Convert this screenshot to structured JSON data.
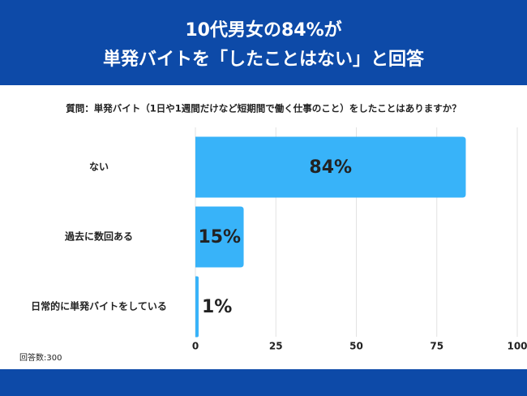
{
  "chart_data": {
    "type": "bar",
    "orientation": "horizontal",
    "title": [
      "10代男女の84%が",
      "単発バイトを「したことはない」と回答"
    ],
    "subtitle": "質問：単発バイト（1日や1週間だけなど短期間で働く仕事のこと）をしたことはありますか？",
    "categories": [
      "ない",
      "過去に数回ある",
      "日常的に単発バイトをしている"
    ],
    "values": [
      84,
      15,
      1
    ],
    "value_labels": [
      "84%",
      "15%",
      "1%"
    ],
    "color": "#38b3f9",
    "xlim": [
      0,
      100
    ],
    "xticks": [
      0,
      25,
      50,
      75,
      100
    ],
    "grid": true,
    "note": "回答数:300"
  }
}
